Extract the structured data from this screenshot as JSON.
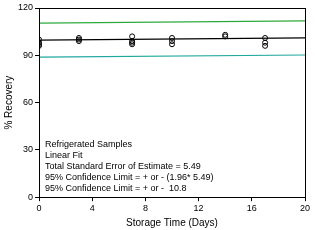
{
  "chart_data": {
    "type": "scatter",
    "x_label": "Storage Time (Days)",
    "y_label": "% Recovery",
    "xlim": [
      0,
      20
    ],
    "xticks": [
      0,
      4,
      8,
      12,
      16,
      20
    ],
    "ylim": [
      0,
      120
    ],
    "yticks": [
      0,
      30,
      60,
      90,
      120
    ],
    "grid": false,
    "annotations": [
      "Refrigerated Samples",
      "Linear Fit",
      "Total Standard Error of Estimate = 5.49",
      "95% Confidence Limit = + or - (1.96* 5.49)",
      "95% Confidence Limit = + or -  10.8"
    ],
    "series": [
      {
        "type": "scatter",
        "marker": "circle",
        "color": "#000000",
        "x": [
          0,
          0,
          0,
          0,
          3,
          3,
          3,
          7,
          7,
          7,
          7,
          10,
          10,
          10,
          14,
          14,
          17,
          17,
          17
        ],
        "values": [
          100,
          98,
          97,
          96,
          100,
          99,
          101,
          102,
          98,
          99,
          97,
          101,
          99,
          97,
          102,
          103,
          101,
          98,
          96
        ]
      },
      {
        "type": "line",
        "line_style": "solid",
        "color": "#000000",
        "x": [
          0,
          20
        ],
        "values": [
          99.6,
          101
        ]
      },
      {
        "type": "line",
        "line_style": "solid",
        "color": "#2eaa3c",
        "x": [
          0,
          20
        ],
        "values": [
          110.4,
          111.8
        ]
      },
      {
        "type": "line",
        "line_style": "solid",
        "color": "#1fa89e",
        "x": [
          0,
          20
        ],
        "values": [
          88.8,
          90.2
        ]
      }
    ]
  }
}
